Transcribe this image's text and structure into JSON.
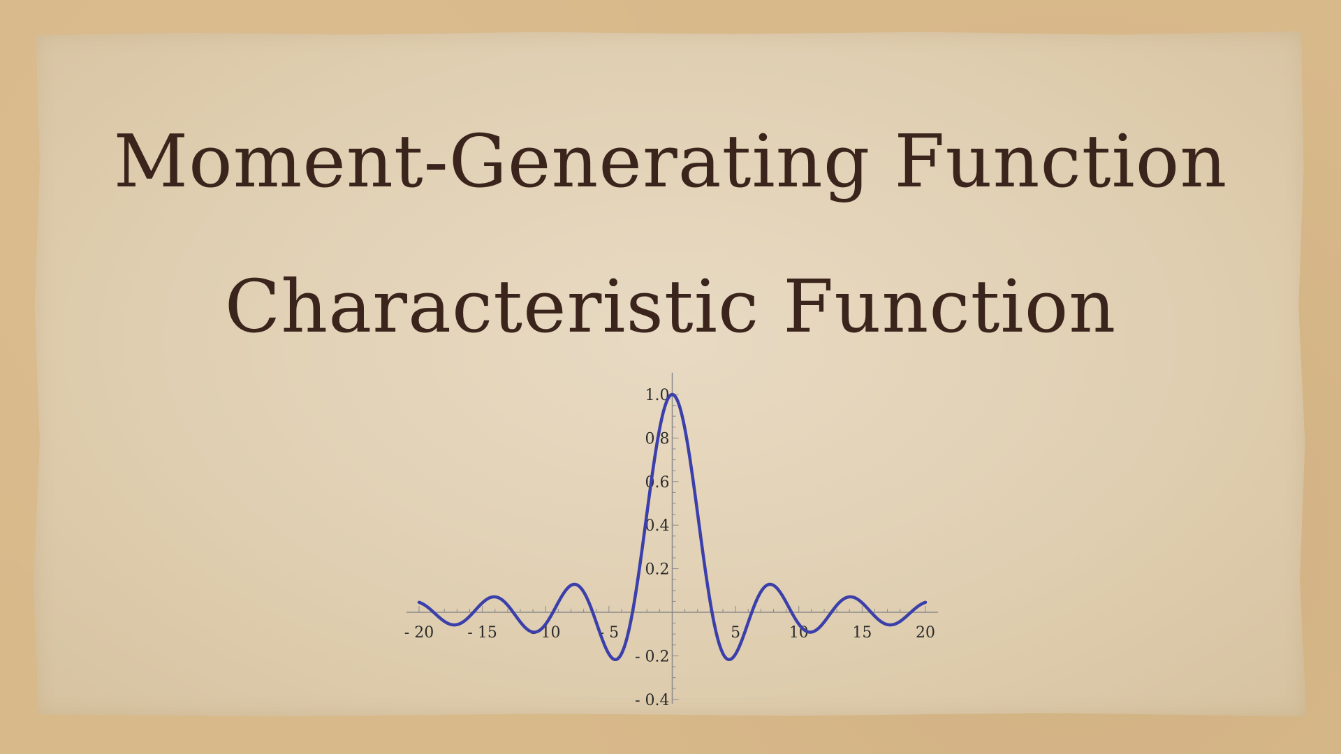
{
  "slide": {
    "title_line_1": "Moment-Generating Function",
    "title_line_2": "Characteristic Function"
  },
  "colors": {
    "background": "#d8b98a",
    "paper": "#e3d3b9",
    "title_text": "#3b241c",
    "curve": "#3b3faa",
    "axis": "#8a8a8a"
  },
  "chart_data": {
    "type": "line",
    "title": "",
    "xlabel": "",
    "ylabel": "",
    "xlim": [
      -20,
      20
    ],
    "ylim": [
      -0.4,
      1.05
    ],
    "grid": false,
    "x_ticks": [
      {
        "value": -20,
        "label": "- 20"
      },
      {
        "value": -15,
        "label": "- 15"
      },
      {
        "value": -10,
        "label": "- 10"
      },
      {
        "value": -5,
        "label": "- 5"
      },
      {
        "value": 5,
        "label": "5"
      },
      {
        "value": 10,
        "label": "10"
      },
      {
        "value": 15,
        "label": "15"
      },
      {
        "value": 20,
        "label": "20"
      }
    ],
    "y_ticks": [
      {
        "value": 1.0,
        "label": "1.0"
      },
      {
        "value": 0.8,
        "label": "0.8"
      },
      {
        "value": 0.6,
        "label": "0.6"
      },
      {
        "value": 0.4,
        "label": "0.4"
      },
      {
        "value": 0.2,
        "label": "0.2"
      },
      {
        "value": -0.2,
        "label": "- 0.2"
      },
      {
        "value": -0.4,
        "label": "- 0.4"
      }
    ],
    "series": [
      {
        "x": [
          -20,
          -19,
          -18,
          -17,
          -16,
          -15,
          -14,
          -13,
          -12,
          -11,
          -10,
          -9,
          -8,
          -7,
          -6,
          -5,
          -4,
          -3,
          -2,
          -1,
          0,
          1,
          2,
          3,
          4,
          5,
          6,
          7,
          8,
          9,
          10,
          11,
          12,
          13,
          14,
          15,
          16,
          17,
          18,
          19,
          20
        ],
        "y": [
          0.046,
          0.008,
          -0.042,
          -0.057,
          -0.018,
          0.043,
          0.07,
          0.032,
          -0.045,
          -0.091,
          -0.054,
          0.046,
          0.124,
          0.094,
          -0.047,
          -0.192,
          -0.189,
          0.047,
          0.455,
          0.841,
          1.0,
          0.841,
          0.455,
          0.047,
          -0.189,
          -0.192,
          -0.047,
          0.094,
          0.124,
          0.046,
          -0.054,
          -0.091,
          -0.045,
          0.032,
          0.07,
          0.043,
          -0.018,
          -0.057,
          -0.042,
          0.008,
          0.046
        ]
      }
    ]
  }
}
